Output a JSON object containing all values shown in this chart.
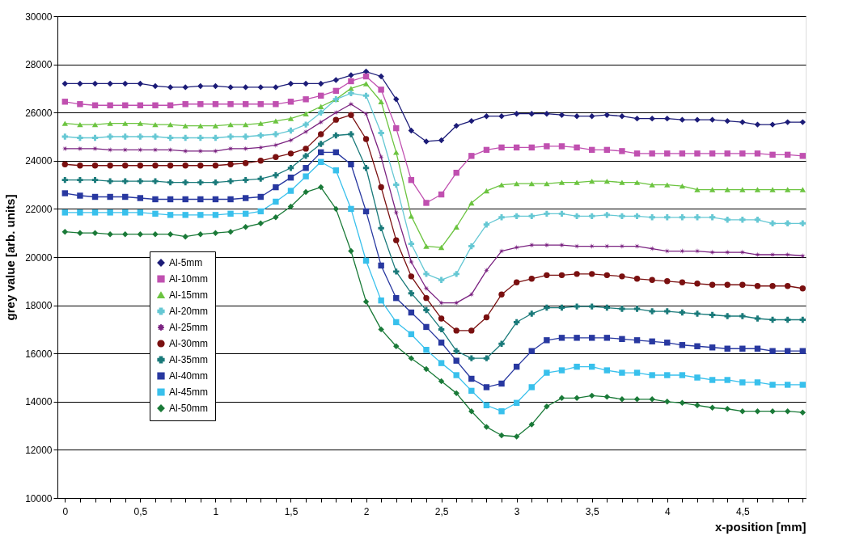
{
  "chart_data": {
    "type": "line",
    "xlabel": "x-position [mm]",
    "ylabel": "grey value [arb. units]",
    "x": [
      0,
      0.1,
      0.2,
      0.3,
      0.4,
      0.5,
      0.6,
      0.7,
      0.8,
      0.9,
      1,
      1.1,
      1.2,
      1.3,
      1.4,
      1.5,
      1.6,
      1.7,
      1.8,
      1.9,
      2,
      2.1,
      2.2,
      2.3,
      2.4,
      2.5,
      2.6,
      2.7,
      2.8,
      2.9,
      3,
      3.1,
      3.2,
      3.3,
      3.4,
      3.5,
      3.6,
      3.7,
      3.8,
      3.9,
      4,
      4.1,
      4.2,
      4.3,
      4.4,
      4.5,
      4.6,
      4.7,
      4.8,
      4.9
    ],
    "xlim": [
      -0.05,
      4.92
    ],
    "ylim": [
      10000,
      30000
    ],
    "xticks": [
      0,
      {
        "value": 0.1,
        "label": null
      },
      {
        "value": 0.2,
        "label": null
      },
      {
        "value": 0.3,
        "label": null
      },
      {
        "value": 0.4,
        "label": null
      },
      {
        "value": 0.5,
        "label": "0,5"
      },
      {
        "value": 0.6,
        "label": null
      },
      {
        "value": 0.7,
        "label": null
      },
      {
        "value": 0.8,
        "label": null
      },
      {
        "value": 0.9,
        "label": null
      },
      1,
      {
        "value": 1.1,
        "label": null
      },
      {
        "value": 1.2,
        "label": null
      },
      {
        "value": 1.3,
        "label": null
      },
      {
        "value": 1.4,
        "label": null
      },
      {
        "value": 1.5,
        "label": "1,5"
      },
      {
        "value": 1.6,
        "label": null
      },
      {
        "value": 1.7,
        "label": null
      },
      {
        "value": 1.8,
        "label": null
      },
      {
        "value": 1.9,
        "label": null
      },
      2,
      {
        "value": 2.1,
        "label": null
      },
      {
        "value": 2.2,
        "label": null
      },
      {
        "value": 2.3,
        "label": null
      },
      {
        "value": 2.4,
        "label": null
      },
      {
        "value": 2.5,
        "label": "2,5"
      },
      {
        "value": 2.6,
        "label": null
      },
      {
        "value": 2.7,
        "label": null
      },
      {
        "value": 2.8,
        "label": null
      },
      {
        "value": 2.9,
        "label": null
      },
      3,
      {
        "value": 3.1,
        "label": null
      },
      {
        "value": 3.2,
        "label": null
      },
      {
        "value": 3.3,
        "label": null
      },
      {
        "value": 3.4,
        "label": null
      },
      {
        "value": 3.5,
        "label": "3,5"
      },
      {
        "value": 3.6,
        "label": null
      },
      {
        "value": 3.7,
        "label": null
      },
      {
        "value": 3.8,
        "label": null
      },
      {
        "value": 3.9,
        "label": null
      },
      4,
      {
        "value": 4.1,
        "label": null
      },
      {
        "value": 4.2,
        "label": null
      },
      {
        "value": 4.3,
        "label": null
      },
      {
        "value": 4.4,
        "label": null
      },
      {
        "value": 4.5,
        "label": "4,5"
      },
      {
        "value": 4.6,
        "label": null
      },
      {
        "value": 4.7,
        "label": null
      },
      {
        "value": 4.8,
        "label": null
      },
      {
        "value": 4.9,
        "label": null
      }
    ],
    "yticks": [
      10000,
      12000,
      14000,
      16000,
      18000,
      20000,
      22000,
      24000,
      26000,
      28000,
      30000
    ],
    "grid": "y",
    "legend": "bottom left",
    "line_style": "solid",
    "series": [
      {
        "name": "Al-5mm",
        "color": "#1c1c78",
        "marker": "diamond",
        "values": [
          27200,
          27200,
          27200,
          27200,
          27200,
          27200,
          27100,
          27050,
          27050,
          27100,
          27100,
          27050,
          27050,
          27050,
          27050,
          27200,
          27200,
          27200,
          27350,
          27550,
          27700,
          27500,
          26550,
          25250,
          24800,
          24850,
          25450,
          25650,
          25850,
          25850,
          25950,
          25950,
          25950,
          25900,
          25850,
          25850,
          25900,
          25850,
          25750,
          25750,
          25750,
          25700,
          25700,
          25700,
          25650,
          25600,
          25500,
          25500,
          25600,
          25600
        ]
      },
      {
        "name": "Al-10mm",
        "color": "#c050b0",
        "marker": "square",
        "values": [
          26450,
          26350,
          26300,
          26300,
          26300,
          26300,
          26300,
          26300,
          26350,
          26350,
          26350,
          26350,
          26350,
          26350,
          26350,
          26450,
          26550,
          26700,
          26900,
          27300,
          27500,
          26950,
          25350,
          23200,
          22250,
          22600,
          23500,
          24200,
          24450,
          24550,
          24550,
          24550,
          24600,
          24600,
          24550,
          24450,
          24450,
          24400,
          24300,
          24300,
          24300,
          24300,
          24300,
          24300,
          24300,
          24300,
          24300,
          24250,
          24250,
          24200
        ]
      },
      {
        "name": "Al-15mm",
        "color": "#6cc440",
        "marker": "triangle",
        "values": [
          25550,
          25500,
          25500,
          25550,
          25550,
          25550,
          25500,
          25500,
          25450,
          25450,
          25450,
          25500,
          25500,
          25550,
          25650,
          25750,
          25950,
          26250,
          26550,
          27000,
          27200,
          26450,
          24350,
          21700,
          20450,
          20400,
          21250,
          22250,
          22750,
          23000,
          23050,
          23050,
          23050,
          23100,
          23100,
          23150,
          23150,
          23100,
          23100,
          23000,
          23000,
          22950,
          22800,
          22800,
          22800,
          22800,
          22800,
          22800,
          22800,
          22800
        ]
      },
      {
        "name": "Al-20mm",
        "color": "#66c8d4",
        "marker": "cross",
        "values": [
          25000,
          24950,
          24950,
          25000,
          25000,
          25000,
          25000,
          24950,
          24950,
          24950,
          24950,
          25000,
          25000,
          25050,
          25100,
          25250,
          25500,
          26000,
          26550,
          26800,
          26700,
          25150,
          23000,
          20550,
          19300,
          19050,
          19300,
          20450,
          21350,
          21650,
          21700,
          21700,
          21800,
          21800,
          21700,
          21700,
          21750,
          21700,
          21700,
          21650,
          21650,
          21650,
          21650,
          21650,
          21550,
          21550,
          21550,
          21400,
          21400,
          21400
        ]
      },
      {
        "name": "Al-25mm",
        "color": "#7a2280",
        "marker": "star",
        "values": [
          24500,
          24500,
          24500,
          24450,
          24450,
          24450,
          24450,
          24450,
          24400,
          24400,
          24400,
          24500,
          24500,
          24550,
          24650,
          24850,
          25200,
          25600,
          26000,
          26350,
          25950,
          24150,
          21850,
          19800,
          18700,
          18100,
          18100,
          18450,
          19450,
          20250,
          20400,
          20500,
          20500,
          20500,
          20450,
          20450,
          20450,
          20450,
          20450,
          20350,
          20250,
          20250,
          20250,
          20200,
          20200,
          20200,
          20100,
          20100,
          20100,
          20050
        ]
      },
      {
        "name": "Al-30mm",
        "color": "#7a1010",
        "marker": "circle",
        "values": [
          23850,
          23800,
          23800,
          23800,
          23800,
          23800,
          23800,
          23800,
          23800,
          23800,
          23800,
          23850,
          23900,
          24000,
          24150,
          24300,
          24500,
          25100,
          25700,
          25900,
          24900,
          22900,
          20700,
          19200,
          18300,
          17450,
          16950,
          16950,
          17500,
          18450,
          18950,
          19100,
          19250,
          19250,
          19300,
          19300,
          19250,
          19200,
          19100,
          19050,
          19000,
          18950,
          18900,
          18850,
          18850,
          18850,
          18800,
          18800,
          18800,
          18700
        ]
      },
      {
        "name": "Al-35mm",
        "color": "#1a7a7a",
        "marker": "cross",
        "values": [
          23200,
          23200,
          23200,
          23150,
          23150,
          23150,
          23150,
          23100,
          23100,
          23100,
          23100,
          23150,
          23200,
          23250,
          23400,
          23700,
          24200,
          24700,
          25050,
          25100,
          23700,
          21200,
          19400,
          18500,
          17800,
          17000,
          16100,
          15800,
          15800,
          16400,
          17300,
          17650,
          17900,
          17900,
          17950,
          17950,
          17900,
          17850,
          17850,
          17750,
          17750,
          17700,
          17650,
          17600,
          17550,
          17550,
          17450,
          17400,
          17400,
          17400
        ]
      },
      {
        "name": "Al-40mm",
        "color": "#2838a0",
        "marker": "square",
        "values": [
          22650,
          22550,
          22500,
          22500,
          22500,
          22450,
          22400,
          22400,
          22400,
          22400,
          22400,
          22400,
          22450,
          22500,
          22900,
          23300,
          23700,
          24350,
          24350,
          23850,
          21900,
          19650,
          18300,
          17700,
          17100,
          16450,
          15700,
          14950,
          14600,
          14750,
          15450,
          16100,
          16550,
          16650,
          16650,
          16650,
          16650,
          16600,
          16550,
          16500,
          16450,
          16350,
          16300,
          16250,
          16200,
          16200,
          16200,
          16100,
          16100,
          16100
        ]
      },
      {
        "name": "Al-45mm",
        "color": "#38c0ec",
        "marker": "square",
        "values": [
          21850,
          21850,
          21850,
          21850,
          21850,
          21850,
          21800,
          21750,
          21750,
          21750,
          21750,
          21800,
          21800,
          21900,
          22300,
          22750,
          23350,
          23950,
          23600,
          22000,
          19850,
          18200,
          17300,
          16800,
          16150,
          15600,
          15100,
          14450,
          13850,
          13600,
          13950,
          14600,
          15200,
          15300,
          15450,
          15450,
          15300,
          15200,
          15200,
          15100,
          15100,
          15100,
          15000,
          14900,
          14900,
          14800,
          14800,
          14700,
          14700,
          14700
        ]
      },
      {
        "name": "Al-50mm",
        "color": "#1a7a38",
        "marker": "diamond",
        "values": [
          21050,
          21000,
          21000,
          20950,
          20950,
          20950,
          20950,
          20950,
          20850,
          20950,
          21000,
          21050,
          21250,
          21400,
          21650,
          22100,
          22700,
          22900,
          22000,
          20250,
          18150,
          17000,
          16300,
          15800,
          15350,
          14850,
          14350,
          13600,
          12950,
          12600,
          12550,
          13050,
          13800,
          14150,
          14150,
          14250,
          14200,
          14100,
          14100,
          14100,
          14000,
          13950,
          13850,
          13750,
          13700,
          13600,
          13600,
          13600,
          13600,
          13550
        ]
      }
    ]
  }
}
